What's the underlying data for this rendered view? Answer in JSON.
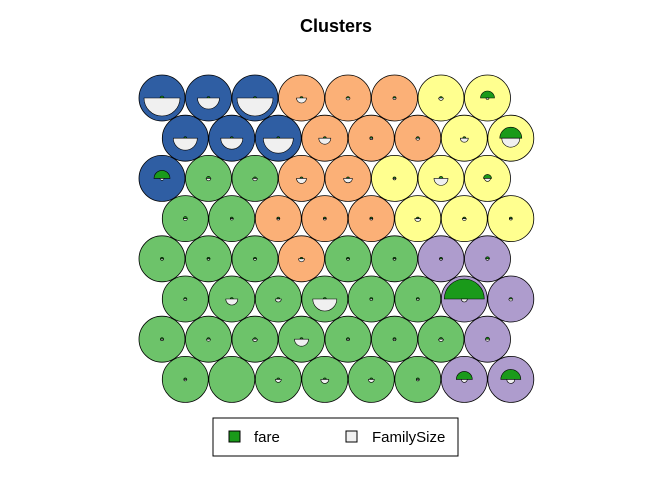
{
  "chart_data": {
    "type": "som-codes-map",
    "title": "Clusters",
    "grid": {
      "topology": "hexagonal",
      "columns": 8,
      "rows": 8
    },
    "legend": {
      "placement": "bottom-center",
      "entries": [
        {
          "name": "fare",
          "color": "#1a9a1a"
        },
        {
          "name": "FamilySize",
          "color": "#f0f0f0"
        }
      ]
    },
    "cluster_colors": {
      "A": "#2f5ea3",
      "B": "#6dc36a",
      "C": "#fbb077",
      "D": "#ffff8f",
      "E": "#ae9ccd"
    },
    "units": [
      {
        "row": 0,
        "col": 0,
        "cluster": "A",
        "fare": 0.1,
        "family": 0.9
      },
      {
        "row": 0,
        "col": 1,
        "cluster": "A",
        "fare": 0.05,
        "family": 0.55
      },
      {
        "row": 0,
        "col": 2,
        "cluster": "A",
        "fare": 0.05,
        "family": 0.9
      },
      {
        "row": 0,
        "col": 3,
        "cluster": "C",
        "fare": 0.05,
        "family": 0.25
      },
      {
        "row": 0,
        "col": 4,
        "cluster": "C",
        "fare": 0.05,
        "family": 0.1
      },
      {
        "row": 0,
        "col": 5,
        "cluster": "C",
        "fare": 0.05,
        "family": 0.08
      },
      {
        "row": 0,
        "col": 6,
        "cluster": "D",
        "fare": 0.05,
        "family": 0.12
      },
      {
        "row": 0,
        "col": 7,
        "cluster": "D",
        "fare": 0.35,
        "family": 0.05
      },
      {
        "row": 1,
        "col": 0,
        "cluster": "A",
        "fare": 0.05,
        "family": 0.6
      },
      {
        "row": 1,
        "col": 1,
        "cluster": "A",
        "fare": 0.05,
        "family": 0.55
      },
      {
        "row": 1,
        "col": 2,
        "cluster": "A",
        "fare": 0.05,
        "family": 0.75
      },
      {
        "row": 1,
        "col": 3,
        "cluster": "C",
        "fare": 0.05,
        "family": 0.3
      },
      {
        "row": 1,
        "col": 4,
        "cluster": "C",
        "fare": 0.02,
        "family": 0.05
      },
      {
        "row": 1,
        "col": 5,
        "cluster": "C",
        "fare": 0.05,
        "family": 0.1
      },
      {
        "row": 1,
        "col": 6,
        "cluster": "D",
        "fare": 0.05,
        "family": 0.2
      },
      {
        "row": 1,
        "col": 7,
        "cluster": "D",
        "fare": 0.55,
        "family": 0.45
      },
      {
        "row": 2,
        "col": 0,
        "cluster": "A",
        "fare": 0.4,
        "family": 0.1
      },
      {
        "row": 2,
        "col": 1,
        "cluster": "B",
        "fare": 0.1,
        "family": 0.12
      },
      {
        "row": 2,
        "col": 2,
        "cluster": "B",
        "fare": 0.05,
        "family": 0.12
      },
      {
        "row": 2,
        "col": 3,
        "cluster": "C",
        "fare": 0.05,
        "family": 0.25
      },
      {
        "row": 2,
        "col": 4,
        "cluster": "C",
        "fare": 0.05,
        "family": 0.22
      },
      {
        "row": 2,
        "col": 5,
        "cluster": "D",
        "fare": 0.02,
        "family": 0.05
      },
      {
        "row": 2,
        "col": 6,
        "cluster": "D",
        "fare": 0.1,
        "family": 0.35
      },
      {
        "row": 2,
        "col": 7,
        "cluster": "D",
        "fare": 0.2,
        "family": 0.15
      },
      {
        "row": 3,
        "col": 0,
        "cluster": "B",
        "fare": 0.1,
        "family": 0.1
      },
      {
        "row": 3,
        "col": 1,
        "cluster": "B",
        "fare": 0.05,
        "family": 0.05
      },
      {
        "row": 3,
        "col": 2,
        "cluster": "C",
        "fare": 0.05,
        "family": 0.05
      },
      {
        "row": 3,
        "col": 3,
        "cluster": "C",
        "fare": 0.02,
        "family": 0.05
      },
      {
        "row": 3,
        "col": 4,
        "cluster": "C",
        "fare": 0.02,
        "family": 0.05
      },
      {
        "row": 3,
        "col": 5,
        "cluster": "D",
        "fare": 0.05,
        "family": 0.15
      },
      {
        "row": 3,
        "col": 6,
        "cluster": "D",
        "fare": 0.05,
        "family": 0.1
      },
      {
        "row": 3,
        "col": 7,
        "cluster": "D",
        "fare": 0.05,
        "family": 0.05
      },
      {
        "row": 4,
        "col": 0,
        "cluster": "B",
        "fare": 0.02,
        "family": 0.02
      },
      {
        "row": 4,
        "col": 1,
        "cluster": "B",
        "fare": 0.05,
        "family": 0.05
      },
      {
        "row": 4,
        "col": 2,
        "cluster": "B",
        "fare": 0.05,
        "family": 0.08
      },
      {
        "row": 4,
        "col": 3,
        "cluster": "C",
        "fare": 0.05,
        "family": 0.15
      },
      {
        "row": 4,
        "col": 4,
        "cluster": "B",
        "fare": 0.02,
        "family": 0.05
      },
      {
        "row": 4,
        "col": 5,
        "cluster": "B",
        "fare": 0.02,
        "family": 0.02
      },
      {
        "row": 4,
        "col": 6,
        "cluster": "E",
        "fare": 0.05,
        "family": 0.05
      },
      {
        "row": 4,
        "col": 7,
        "cluster": "E",
        "fare": 0.1,
        "family": 0.08
      },
      {
        "row": 5,
        "col": 0,
        "cluster": "B",
        "fare": 0.05,
        "family": 0.08
      },
      {
        "row": 5,
        "col": 1,
        "cluster": "B",
        "fare": 0.05,
        "family": 0.3
      },
      {
        "row": 5,
        "col": 2,
        "cluster": "B",
        "fare": 0.05,
        "family": 0.15
      },
      {
        "row": 5,
        "col": 3,
        "cluster": "B",
        "fare": 0.05,
        "family": 0.6
      },
      {
        "row": 5,
        "col": 4,
        "cluster": "B",
        "fare": 0.02,
        "family": 0.05
      },
      {
        "row": 5,
        "col": 5,
        "cluster": "B",
        "fare": 0.02,
        "family": 0.05
      },
      {
        "row": 5,
        "col": 6,
        "cluster": "E",
        "fare": 1.0,
        "family": 0.15
      },
      {
        "row": 5,
        "col": 7,
        "cluster": "E",
        "fare": 0.05,
        "family": 0.1
      },
      {
        "row": 6,
        "col": 0,
        "cluster": "B",
        "fare": 0.02,
        "family": 0.05
      },
      {
        "row": 6,
        "col": 1,
        "cluster": "B",
        "fare": 0.05,
        "family": 0.1
      },
      {
        "row": 6,
        "col": 2,
        "cluster": "B",
        "fare": 0.05,
        "family": 0.12
      },
      {
        "row": 6,
        "col": 3,
        "cluster": "B",
        "fare": 0.05,
        "family": 0.35
      },
      {
        "row": 6,
        "col": 4,
        "cluster": "B",
        "fare": 0.02,
        "family": 0.05
      },
      {
        "row": 6,
        "col": 5,
        "cluster": "B",
        "fare": 0.02,
        "family": 0.02
      },
      {
        "row": 6,
        "col": 6,
        "cluster": "B",
        "fare": 0.08,
        "family": 0.12
      },
      {
        "row": 6,
        "col": 7,
        "cluster": "E",
        "fare": 0.1,
        "family": 0.1
      },
      {
        "row": 7,
        "col": 0,
        "cluster": "B",
        "fare": 0.02,
        "family": 0.02
      },
      {
        "row": 7,
        "col": 1,
        "cluster": "B",
        "fare": 0.0,
        "family": 0.0
      },
      {
        "row": 7,
        "col": 2,
        "cluster": "B",
        "fare": 0.05,
        "family": 0.15
      },
      {
        "row": 7,
        "col": 3,
        "cluster": "B",
        "fare": 0.05,
        "family": 0.2
      },
      {
        "row": 7,
        "col": 4,
        "cluster": "B",
        "fare": 0.05,
        "family": 0.15
      },
      {
        "row": 7,
        "col": 5,
        "cluster": "B",
        "fare": 0.02,
        "family": 0.05
      },
      {
        "row": 7,
        "col": 6,
        "cluster": "E",
        "fare": 0.4,
        "family": 0.15
      },
      {
        "row": 7,
        "col": 7,
        "cluster": "E",
        "fare": 0.5,
        "family": 0.2
      }
    ]
  }
}
